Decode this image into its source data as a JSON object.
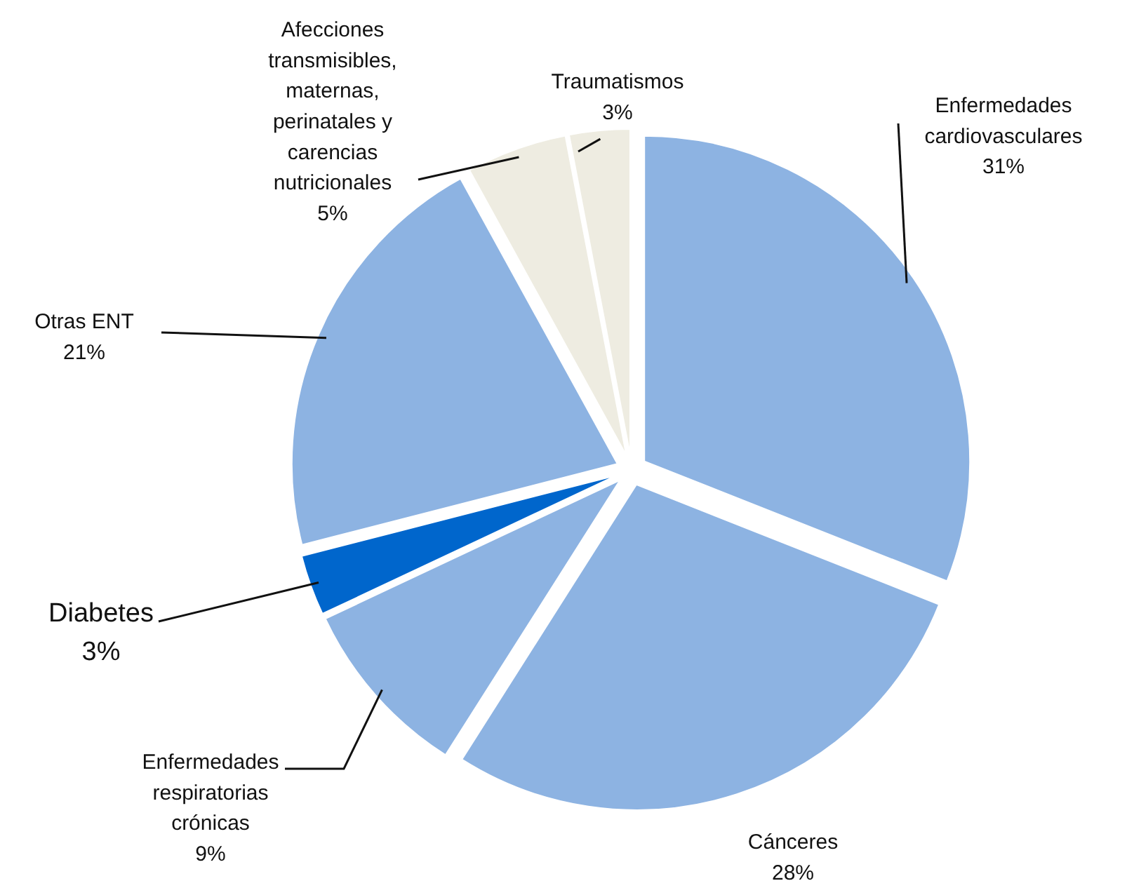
{
  "chart_data": {
    "type": "pie",
    "categories": [
      "Enfermedades cardiovasculares",
      "Cánceres",
      "Enfermedades respiratorias crónicas",
      "Diabetes",
      "Otras ENT",
      "Afecciones transmisibles, maternas, perinatales y carencias nutricionales",
      "Traumatismos"
    ],
    "values": [
      31,
      28,
      9,
      3,
      21,
      5,
      3
    ],
    "value_labels": [
      "31%",
      "28%",
      "9%",
      "3%",
      "21%",
      "5%",
      "3%"
    ],
    "colors": [
      "#8db3e2",
      "#8db3e2",
      "#8db3e2",
      "#0066cc",
      "#8db3e2",
      "#eeece1",
      "#eeece1"
    ],
    "legend": false
  }
}
